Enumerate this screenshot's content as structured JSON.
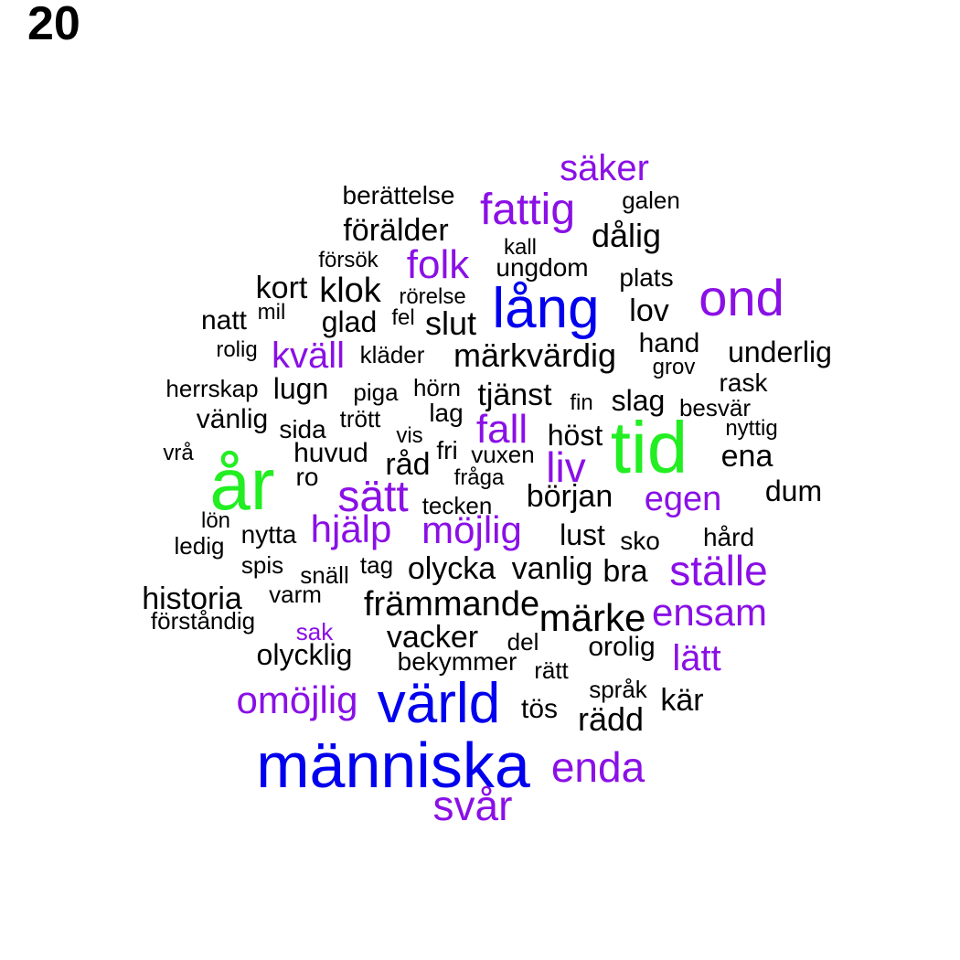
{
  "panel_label": "20",
  "colors": {
    "green": "#22ee22",
    "blue": "#0000ee",
    "purple": "#8a10e6",
    "black": "#000000"
  },
  "words": [
    {
      "text": "säker",
      "color": "purple"
    },
    {
      "text": "berättelse",
      "color": "black"
    },
    {
      "text": "fattig",
      "color": "purple"
    },
    {
      "text": "galen",
      "color": "black"
    },
    {
      "text": "förälder",
      "color": "black"
    },
    {
      "text": "dålig",
      "color": "black"
    },
    {
      "text": "kall",
      "color": "black"
    },
    {
      "text": "försök",
      "color": "black"
    },
    {
      "text": "folk",
      "color": "purple"
    },
    {
      "text": "ungdom",
      "color": "black"
    },
    {
      "text": "plats",
      "color": "black"
    },
    {
      "text": "kort",
      "color": "black"
    },
    {
      "text": "klok",
      "color": "black"
    },
    {
      "text": "rörelse",
      "color": "black"
    },
    {
      "text": "lång",
      "color": "blue"
    },
    {
      "text": "ond",
      "color": "purple"
    },
    {
      "text": "natt",
      "color": "black"
    },
    {
      "text": "mil",
      "color": "black"
    },
    {
      "text": "glad",
      "color": "black"
    },
    {
      "text": "fel",
      "color": "black"
    },
    {
      "text": "slut",
      "color": "black"
    },
    {
      "text": "lov",
      "color": "black"
    },
    {
      "text": "rolig",
      "color": "black"
    },
    {
      "text": "kväll",
      "color": "purple"
    },
    {
      "text": "kläder",
      "color": "black"
    },
    {
      "text": "märkvärdig",
      "color": "black"
    },
    {
      "text": "hand",
      "color": "black"
    },
    {
      "text": "underlig",
      "color": "black"
    },
    {
      "text": "grov",
      "color": "black"
    },
    {
      "text": "herrskap",
      "color": "black"
    },
    {
      "text": "lugn",
      "color": "black"
    },
    {
      "text": "piga",
      "color": "black"
    },
    {
      "text": "hörn",
      "color": "black"
    },
    {
      "text": "tjänst",
      "color": "black"
    },
    {
      "text": "rask",
      "color": "black"
    },
    {
      "text": "fin",
      "color": "black"
    },
    {
      "text": "slag",
      "color": "black"
    },
    {
      "text": "besvär",
      "color": "black"
    },
    {
      "text": "lag",
      "color": "black"
    },
    {
      "text": "vänlig",
      "color": "black"
    },
    {
      "text": "trött",
      "color": "black"
    },
    {
      "text": "sida",
      "color": "black"
    },
    {
      "text": "fall",
      "color": "purple"
    },
    {
      "text": "höst",
      "color": "black"
    },
    {
      "text": "tid",
      "color": "green"
    },
    {
      "text": "nyttig",
      "color": "black"
    },
    {
      "text": "vis",
      "color": "black"
    },
    {
      "text": "vrå",
      "color": "black"
    },
    {
      "text": "huvud",
      "color": "black"
    },
    {
      "text": "fri",
      "color": "black"
    },
    {
      "text": "vuxen",
      "color": "black"
    },
    {
      "text": "ena",
      "color": "black"
    },
    {
      "text": "år",
      "color": "green"
    },
    {
      "text": "råd",
      "color": "black"
    },
    {
      "text": "liv",
      "color": "purple"
    },
    {
      "text": "ro",
      "color": "black"
    },
    {
      "text": "fråga",
      "color": "black"
    },
    {
      "text": "dum",
      "color": "black"
    },
    {
      "text": "sätt",
      "color": "purple"
    },
    {
      "text": "början",
      "color": "black"
    },
    {
      "text": "egen",
      "color": "purple"
    },
    {
      "text": "tecken",
      "color": "black"
    },
    {
      "text": "lön",
      "color": "black"
    },
    {
      "text": "hjälp",
      "color": "purple"
    },
    {
      "text": "möjlig",
      "color": "purple"
    },
    {
      "text": "nytta",
      "color": "black"
    },
    {
      "text": "lust",
      "color": "black"
    },
    {
      "text": "sko",
      "color": "black"
    },
    {
      "text": "hård",
      "color": "black"
    },
    {
      "text": "ledig",
      "color": "black"
    },
    {
      "text": "spis",
      "color": "black"
    },
    {
      "text": "tag",
      "color": "black"
    },
    {
      "text": "ställe",
      "color": "purple"
    },
    {
      "text": "snäll",
      "color": "black"
    },
    {
      "text": "olycka",
      "color": "black"
    },
    {
      "text": "vanlig",
      "color": "black"
    },
    {
      "text": "bra",
      "color": "black"
    },
    {
      "text": "historia",
      "color": "black"
    },
    {
      "text": "varm",
      "color": "black"
    },
    {
      "text": "främmande",
      "color": "black"
    },
    {
      "text": "ensam",
      "color": "purple"
    },
    {
      "text": "förståndig",
      "color": "black"
    },
    {
      "text": "sak",
      "color": "purple"
    },
    {
      "text": "märke",
      "color": "black"
    },
    {
      "text": "vacker",
      "color": "black"
    },
    {
      "text": "del",
      "color": "black"
    },
    {
      "text": "orolig",
      "color": "black"
    },
    {
      "text": "olycklig",
      "color": "black"
    },
    {
      "text": "lätt",
      "color": "purple"
    },
    {
      "text": "bekymmer",
      "color": "black"
    },
    {
      "text": "rätt",
      "color": "black"
    },
    {
      "text": "språk",
      "color": "black"
    },
    {
      "text": "omöjlig",
      "color": "purple"
    },
    {
      "text": "värld",
      "color": "blue"
    },
    {
      "text": "kär",
      "color": "black"
    },
    {
      "text": "tös",
      "color": "black"
    },
    {
      "text": "rädd",
      "color": "black"
    },
    {
      "text": "människa",
      "color": "blue"
    },
    {
      "text": "enda",
      "color": "purple"
    },
    {
      "text": "svår",
      "color": "purple"
    }
  ]
}
